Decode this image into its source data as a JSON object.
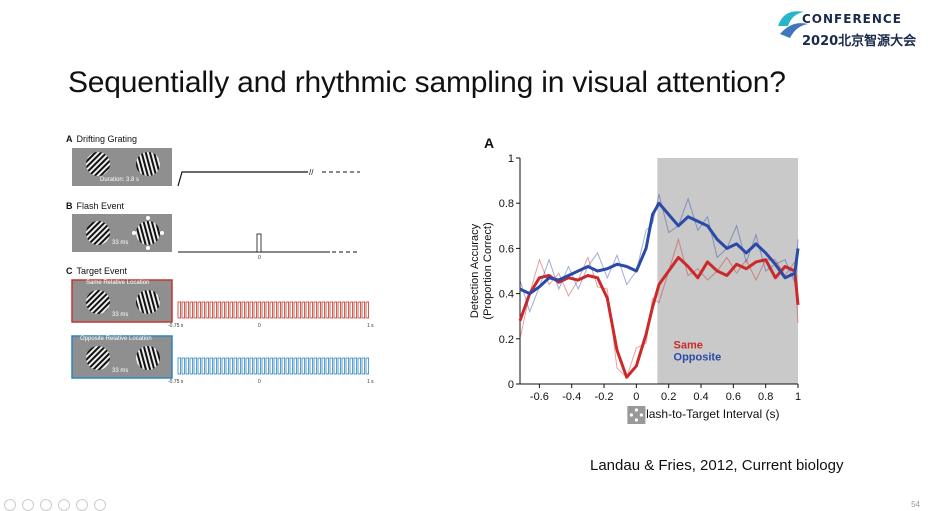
{
  "logo": {
    "line1": "CONFERENCE",
    "line2": "2020北京智源大会",
    "mark": "BAAI"
  },
  "title": "Sequentially and rhythmic sampling in visual attention?",
  "citation": "Landau & Fries, 2012, Current biology",
  "page_number": "54",
  "left_figure": {
    "sections": [
      {
        "letter": "A",
        "label": "Drifting Grating",
        "caption": "Duration: 3.8 s"
      },
      {
        "letter": "B",
        "label": "Flash Event",
        "caption": "33 ms",
        "tick": "0"
      },
      {
        "letter": "C",
        "label": "Target Event"
      }
    ],
    "same_box": {
      "title": "Same Relative Location",
      "caption": "33 ms",
      "color": "#c0392b"
    },
    "opposite_box": {
      "title": "Opposite Relative Location",
      "caption": "33 ms",
      "color": "#2e86c1"
    },
    "timeline_ticks": [
      "-0.75 s",
      "0",
      "1 s"
    ]
  },
  "chart_data": {
    "type": "line",
    "panel_letter": "A",
    "xlabel": "Flash-to-Target Interval (s)",
    "ylabel": "Detection Accuracy (Proportion Correct)",
    "ylabel_lines": [
      "Detection Accuracy",
      "(Proportion Correct)"
    ],
    "xlim": [
      -0.72,
      1.0
    ],
    "ylim": [
      0,
      1
    ],
    "xticks": [
      -0.6,
      -0.4,
      -0.2,
      0,
      0.2,
      0.4,
      0.6,
      0.8,
      1
    ],
    "xtick_labels": [
      "-0.6",
      "-0.4",
      "-0.2",
      "0",
      "0.2",
      "0.4",
      "0.6",
      "0.8",
      "1"
    ],
    "yticks": [
      0,
      0.2,
      0.4,
      0.6,
      0.8,
      1
    ],
    "ytick_labels": [
      "0",
      "0.2",
      "0.4",
      "0.6",
      "0.8",
      "1"
    ],
    "shaded_region": [
      0.13,
      1.0
    ],
    "legend": [
      "Same",
      "Opposite"
    ],
    "x": [
      -0.72,
      -0.66,
      -0.6,
      -0.54,
      -0.48,
      -0.42,
      -0.36,
      -0.3,
      -0.24,
      -0.18,
      -0.12,
      -0.06,
      0,
      0.06,
      0.1,
      0.14,
      0.2,
      0.26,
      0.32,
      0.38,
      0.44,
      0.5,
      0.56,
      0.62,
      0.68,
      0.74,
      0.8,
      0.86,
      0.92,
      0.98,
      1.0
    ],
    "series": [
      {
        "name": "Same",
        "color": "#cc2a2a",
        "values": [
          0.28,
          0.4,
          0.47,
          0.48,
          0.45,
          0.47,
          0.46,
          0.48,
          0.47,
          0.38,
          0.15,
          0.03,
          0.08,
          0.22,
          0.34,
          0.44,
          0.5,
          0.56,
          0.52,
          0.47,
          0.54,
          0.5,
          0.48,
          0.53,
          0.51,
          0.54,
          0.55,
          0.47,
          0.52,
          0.5,
          0.35
        ]
      },
      {
        "name": "Opposite",
        "color": "#2a4aa8",
        "values": [
          0.42,
          0.4,
          0.43,
          0.47,
          0.46,
          0.48,
          0.5,
          0.52,
          0.5,
          0.51,
          0.53,
          0.52,
          0.5,
          0.6,
          0.75,
          0.8,
          0.75,
          0.7,
          0.74,
          0.72,
          0.7,
          0.64,
          0.6,
          0.62,
          0.58,
          0.62,
          0.58,
          0.53,
          0.47,
          0.49,
          0.6
        ]
      }
    ]
  }
}
